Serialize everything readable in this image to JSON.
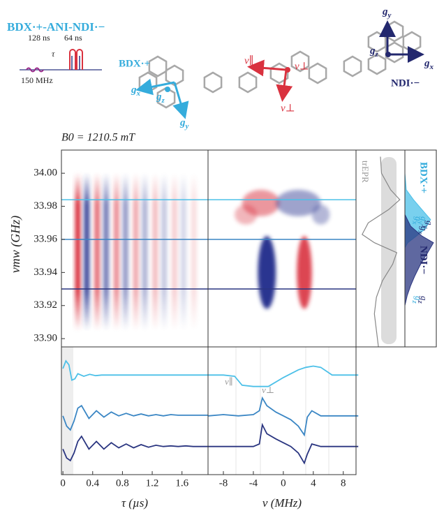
{
  "header": {
    "title": "BDX·+-ANI-NDI·−",
    "b0": "B0 = 1210.5 mT"
  },
  "pulse": {
    "labels": [
      "128 ns",
      "64 ns",
      "τ",
      "150 MHz"
    ]
  },
  "molecule": {
    "bdx_label": "BDX·+",
    "ndi_label": "NDI·−",
    "bdx_axes": [
      "gx",
      "gz",
      "gy"
    ],
    "ndi_axes": [
      "gy",
      "gz",
      "gx"
    ],
    "nu": [
      "ν∥",
      "ν⊥",
      "ν⊥"
    ]
  },
  "chart_data": [
    {
      "type": "heatmap",
      "ylabel": "νmw (GHz)",
      "xlim": [
        -0.02,
        1.95
      ],
      "ylim": [
        33.895,
        34.014
      ],
      "yticks": [
        {
          "value": 33.9,
          "label": "33.90"
        },
        {
          "value": 33.92,
          "label": "33.92"
        },
        {
          "value": 33.94,
          "label": "33.94"
        },
        {
          "value": 33.96,
          "label": "33.96"
        },
        {
          "value": 33.98,
          "label": "33.98"
        },
        {
          "value": 34.0,
          "label": "34.00"
        }
      ],
      "band": [
        33.905,
        34.0
      ],
      "x": [
        0.2,
        0.32,
        0.46,
        0.58,
        0.72,
        0.84,
        0.98,
        1.1,
        1.24,
        1.36,
        1.5,
        1.62,
        1.76
      ],
      "values": [
        1,
        -0.9,
        0.7,
        -0.65,
        0.55,
        -0.5,
        0.42,
        -0.38,
        0.32,
        -0.28,
        0.24,
        -0.2,
        0.16
      ],
      "hlines": [
        {
          "value": 33.984,
          "color": "#4cc0e8"
        },
        {
          "value": 33.96,
          "color": "#3a86c4"
        },
        {
          "value": 33.93,
          "color": "#2a3580"
        }
      ]
    },
    {
      "type": "line",
      "xlabel": "τ (µs)",
      "xlim": [
        -0.02,
        1.95
      ],
      "ylim": [
        0,
        10
      ],
      "xticks": [
        0,
        0.4,
        0.8,
        1.2,
        1.6
      ],
      "series": [
        {
          "color": "#4cc0e8",
          "x": [
            0,
            0.04,
            0.08,
            0.12,
            0.16,
            0.2,
            0.28,
            0.36,
            0.44,
            0.52,
            0.6,
            0.8,
            1.0,
            1.2,
            1.4,
            1.6,
            1.8,
            1.95
          ],
          "values": [
            8.3,
            8.9,
            8.6,
            7.4,
            7.5,
            7.9,
            7.7,
            7.85,
            7.75,
            7.8,
            7.8,
            7.8,
            7.8,
            7.8,
            7.8,
            7.8,
            7.8,
            7.8
          ]
        },
        {
          "color": "#3a86c4",
          "x": [
            0,
            0.05,
            0.1,
            0.15,
            0.2,
            0.25,
            0.35,
            0.45,
            0.55,
            0.65,
            0.75,
            0.85,
            0.95,
            1.05,
            1.15,
            1.25,
            1.35,
            1.45,
            1.55,
            1.65,
            1.75,
            1.85,
            1.95
          ],
          "values": [
            4.6,
            3.8,
            3.5,
            4.2,
            5.2,
            5.4,
            4.4,
            5.0,
            4.5,
            4.9,
            4.6,
            4.8,
            4.6,
            4.75,
            4.6,
            4.7,
            4.6,
            4.7,
            4.65,
            4.65,
            4.65,
            4.65,
            4.65
          ]
        },
        {
          "color": "#2a3580",
          "x": [
            0,
            0.05,
            0.1,
            0.15,
            0.2,
            0.25,
            0.35,
            0.45,
            0.55,
            0.65,
            0.75,
            0.85,
            0.95,
            1.05,
            1.15,
            1.25,
            1.35,
            1.45,
            1.55,
            1.65,
            1.75,
            1.85,
            1.95
          ],
          "values": [
            2.0,
            1.3,
            1.1,
            1.7,
            2.6,
            3.0,
            2.0,
            2.6,
            2.0,
            2.5,
            2.1,
            2.4,
            2.1,
            2.35,
            2.15,
            2.3,
            2.2,
            2.25,
            2.2,
            2.25,
            2.2,
            2.2,
            2.2
          ]
        }
      ]
    },
    {
      "type": "heatmap",
      "xlim": [
        -10.05,
        9.7
      ],
      "ylim": [
        33.895,
        34.014
      ],
      "x": [
        -3,
        2,
        -2.2,
        2.8,
        -5,
        5
      ],
      "y": [
        33.982,
        33.982,
        33.94,
        33.94,
        33.975,
        33.975
      ],
      "dx": [
        2.5,
        3,
        1.2,
        1.0,
        1.5,
        1.2
      ],
      "dy": [
        0.008,
        0.008,
        0.022,
        0.022,
        0.006,
        0.006
      ],
      "values": [
        0.5,
        -0.45,
        -1,
        0.9,
        0.35,
        -0.35
      ]
    },
    {
      "type": "line",
      "xlabel": "ν (MHz)",
      "xlim": [
        -10.05,
        9.7
      ],
      "ylim": [
        0,
        10
      ],
      "xticks": [
        -8,
        -4,
        0,
        4,
        8
      ],
      "annotations": [
        "ν∥",
        "ν⊥"
      ],
      "series": [
        {
          "color": "#4cc0e8",
          "x": [
            -10,
            -8,
            -6.5,
            -5.5,
            -4,
            -2,
            0,
            2,
            3,
            4,
            5,
            6,
            6.5,
            8,
            10
          ],
          "values": [
            7.8,
            7.8,
            7.7,
            7.0,
            6.9,
            6.9,
            7.6,
            8.2,
            8.4,
            8.5,
            8.4,
            8.0,
            7.8,
            7.8,
            7.8
          ]
        },
        {
          "color": "#3a86c4",
          "x": [
            -10,
            -8,
            -6,
            -4,
            -3.2,
            -2.8,
            -2.2,
            -1,
            0,
            1,
            2,
            2.8,
            3.2,
            3.8,
            5,
            6,
            8,
            10
          ],
          "values": [
            4.6,
            4.7,
            4.6,
            4.7,
            5.0,
            6.0,
            5.4,
            4.9,
            4.6,
            4.3,
            3.8,
            3.1,
            4.5,
            5.0,
            4.6,
            4.6,
            4.6,
            4.6
          ]
        },
        {
          "color": "#2a3580",
          "x": [
            -10,
            -8,
            -6,
            -4,
            -3.2,
            -2.8,
            -2.2,
            -1,
            0,
            1,
            2,
            2.8,
            3.2,
            3.8,
            5,
            6,
            8,
            10
          ],
          "values": [
            2.2,
            2.2,
            2.2,
            2.2,
            2.4,
            3.9,
            3.2,
            2.8,
            2.5,
            2.2,
            1.7,
            0.9,
            1.6,
            2.4,
            2.2,
            2.2,
            2.2,
            2.2
          ]
        }
      ]
    },
    {
      "type": "line",
      "label": "trEPR",
      "xlim": [
        -1.2,
        1.2
      ],
      "ylim": [
        33.895,
        34.014
      ],
      "series": [
        {
          "color": "#888888",
          "y": [
            34.01,
            34.0,
            33.99,
            33.984,
            33.978,
            33.97,
            33.963,
            33.958,
            33.952,
            33.945,
            33.935,
            33.925,
            33.915,
            33.905,
            33.895
          ],
          "values": [
            0,
            0.05,
            0.5,
            0.95,
            0.4,
            -0.6,
            -0.9,
            -0.3,
            0.8,
            0.6,
            0.1,
            -0.2,
            -0.3,
            -0.2,
            -0.1
          ]
        }
      ]
    },
    {
      "type": "area",
      "xlim": [
        0,
        1.1
      ],
      "ylim": [
        33.895,
        34.014
      ],
      "annotations": [
        "gx",
        "gy",
        "gx",
        "gy",
        "gz",
        "gz"
      ],
      "annotation_colors": [
        "#35acdc",
        "#35acdc",
        "#23286e",
        "#23286e",
        "#35acdc",
        "#23286e"
      ],
      "series": [
        {
          "name": "BDX·+",
          "color": "#4cc0e8",
          "y": [
            34.0,
            33.99,
            33.984,
            33.978,
            33.972,
            33.966,
            33.962,
            33.958,
            33.955
          ],
          "values": [
            0,
            0.05,
            0.3,
            0.6,
            0.9,
            0.7,
            0.4,
            0.1,
            0
          ]
        },
        {
          "name": "NDI·−",
          "color": "#2a3580",
          "y": [
            33.975,
            33.968,
            33.962,
            33.958,
            33.952,
            33.945,
            33.938,
            33.932,
            33.926,
            33.92
          ],
          "values": [
            0,
            0.2,
            0.6,
            1.0,
            0.8,
            0.55,
            0.35,
            0.2,
            0.08,
            0
          ]
        }
      ]
    }
  ]
}
